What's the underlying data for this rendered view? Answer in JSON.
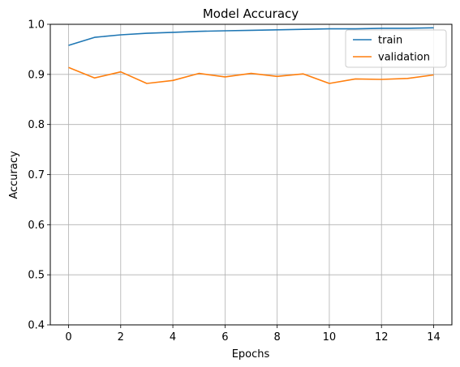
{
  "chart_data": {
    "type": "line",
    "title": "Model Accuracy",
    "xlabel": "Epochs",
    "ylabel": "Accuracy",
    "xlim": [
      -0.7,
      14.7
    ],
    "ylim": [
      0.4,
      1.0
    ],
    "xticks": [
      0,
      2,
      4,
      6,
      8,
      10,
      12,
      14
    ],
    "yticks": [
      0.4,
      0.5,
      0.6,
      0.7,
      0.8,
      0.9,
      1.0
    ],
    "grid": true,
    "legend_position": "top-right",
    "x": [
      0,
      1,
      2,
      3,
      4,
      5,
      6,
      7,
      8,
      9,
      10,
      11,
      12,
      13,
      14
    ],
    "series": [
      {
        "name": "train",
        "color": "#1f77b4",
        "values": [
          0.958,
          0.974,
          0.979,
          0.982,
          0.984,
          0.986,
          0.987,
          0.988,
          0.989,
          0.99,
          0.991,
          0.991,
          0.992,
          0.992,
          0.993
        ]
      },
      {
        "name": "validation",
        "color": "#ff7f0e",
        "values": [
          0.914,
          0.893,
          0.905,
          0.882,
          0.888,
          0.902,
          0.895,
          0.902,
          0.896,
          0.901,
          0.882,
          0.891,
          0.89,
          0.892,
          0.899
        ]
      }
    ]
  }
}
